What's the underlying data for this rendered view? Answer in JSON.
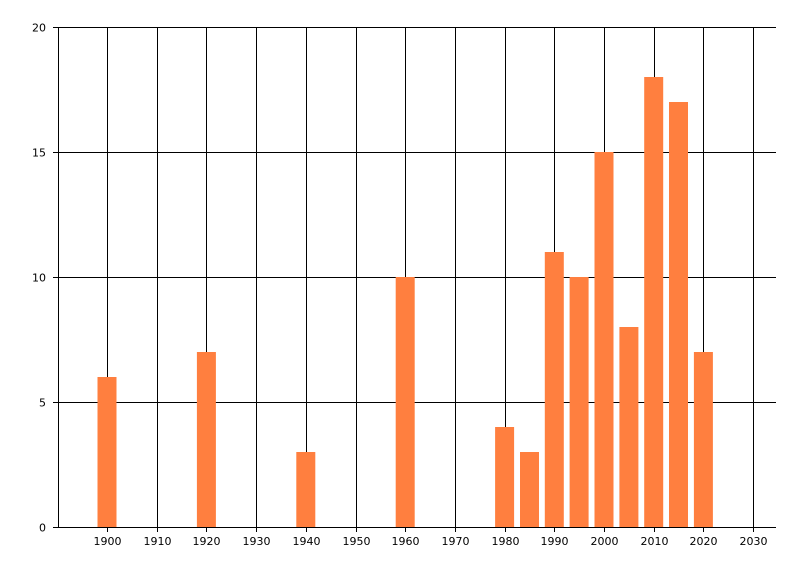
{
  "chart_data": {
    "type": "bar",
    "title": "",
    "xlabel": "",
    "ylabel": "",
    "xlim": [
      1890,
      2035
    ],
    "ylim": [
      0,
      20
    ],
    "x_ticks": [
      1900,
      1910,
      1920,
      1930,
      1940,
      1950,
      1960,
      1970,
      1980,
      1990,
      2000,
      2010,
      2020,
      2030
    ],
    "y_ticks": [
      0,
      5,
      10,
      15,
      20
    ],
    "grid": true,
    "bar_color": "#FF7F3F",
    "x": [
      1900,
      1920,
      1940,
      1960,
      1980,
      1985,
      1990,
      1995,
      2000,
      2005,
      2010,
      2015,
      2020
    ],
    "values": [
      6,
      7,
      3,
      10,
      4,
      3,
      11,
      10,
      15,
      8,
      18,
      17,
      7
    ]
  }
}
